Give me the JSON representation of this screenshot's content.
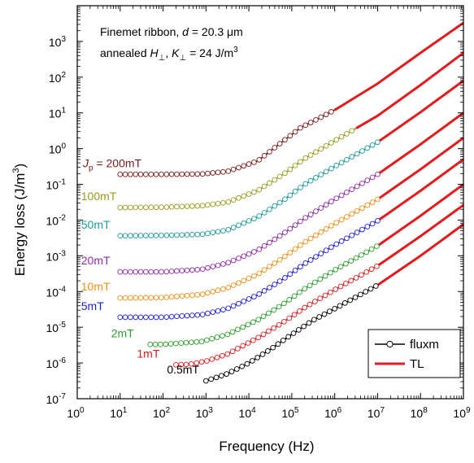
{
  "chart_data": {
    "type": "line",
    "xlabel": "Frequency (Hz)",
    "ylabel_main": "Energy loss (J/m",
    "ylabel_sup": "3",
    "ylabel_close": ")",
    "xscale": "log",
    "yscale": "log",
    "xlim": [
      1,
      1000000000
    ],
    "ylim": [
      1e-07,
      10000
    ],
    "x_tick_exponents": [
      0,
      1,
      2,
      3,
      4,
      5,
      6,
      7,
      8,
      9
    ],
    "y_tick_exponents": [
      -7,
      -6,
      -5,
      -4,
      -3,
      -2,
      -1,
      0,
      1,
      2,
      3
    ],
    "tick_base": "10",
    "annotation": {
      "line1_prefix": "Finemet ribbon, ",
      "line1_var": "d",
      "line1_suffix": " = 20.3 μm",
      "line2_prefix": "annealed ",
      "line2_h": "H",
      "line2_k": "K",
      "line2_sub": "⊥",
      "line2_sep": ", ",
      "line2_suffix": " = 24 J/m",
      "line2_sup": "3"
    },
    "jp_label": {
      "var": "J",
      "sub": "p",
      "suffix": " = 200mT"
    },
    "legend": {
      "position": "bottom-right",
      "items": [
        {
          "label": "fluxm",
          "color": "#000000",
          "marker": "open-circle"
        },
        {
          "label": "TL",
          "color": "#e41a1c",
          "marker": "line"
        }
      ]
    },
    "series": [
      {
        "name": "200mT",
        "color": "#7b1a1a",
        "label_color": "#7b1a1a",
        "meas_x": [
          1,
          6
        ],
        "tl": [
          [
            1,
            -0.72
          ],
          [
            2,
            -0.72
          ],
          [
            2.9,
            -0.71
          ],
          [
            3.5,
            -0.64
          ],
          [
            4.2,
            -0.35
          ],
          [
            4.7,
            0.12
          ],
          [
            5.2,
            0.58
          ],
          [
            6,
            1.08
          ],
          [
            7,
            1.82
          ],
          [
            8,
            2.68
          ],
          [
            9,
            3.52
          ]
        ]
      },
      {
        "name": "100mT",
        "color": "#9b9b1f",
        "label_color": "#9b9b1f",
        "meas_x": [
          1,
          6.5
        ],
        "tl": [
          [
            1,
            -1.65
          ],
          [
            2,
            -1.64
          ],
          [
            2.9,
            -1.6
          ],
          [
            3.5,
            -1.5
          ],
          [
            4.2,
            -1.18
          ],
          [
            4.8,
            -0.72
          ],
          [
            5.3,
            -0.28
          ],
          [
            6,
            0.22
          ],
          [
            7,
            0.92
          ],
          [
            8,
            1.78
          ],
          [
            9,
            2.68
          ]
        ]
      },
      {
        "name": "50mT",
        "color": "#1f9a9a",
        "label_color": "#1f9a9a",
        "meas_x": [
          1,
          7
        ],
        "tl": [
          [
            1,
            -2.44
          ],
          [
            2,
            -2.43
          ],
          [
            2.9,
            -2.4
          ],
          [
            3.5,
            -2.28
          ],
          [
            4.2,
            -1.92
          ],
          [
            4.8,
            -1.45
          ],
          [
            5.3,
            -1.0
          ],
          [
            6,
            -0.5
          ],
          [
            7,
            0.18
          ],
          [
            8,
            1.02
          ],
          [
            9,
            1.9
          ]
        ]
      },
      {
        "name": "20mT",
        "color": "#8e2ca8",
        "label_color": "#8e2ca8",
        "meas_x": [
          1,
          7
        ],
        "tl": [
          [
            1,
            -3.45
          ],
          [
            2,
            -3.45
          ],
          [
            2.9,
            -3.38
          ],
          [
            3.5,
            -3.2
          ],
          [
            4.2,
            -2.85
          ],
          [
            4.8,
            -2.38
          ],
          [
            5.3,
            -1.95
          ],
          [
            6,
            -1.42
          ],
          [
            7,
            -0.72
          ],
          [
            8,
            0.12
          ],
          [
            9,
            1.0
          ]
        ]
      },
      {
        "name": "10mT",
        "color": "#f0901a",
        "label_color": "#f0901a",
        "meas_x": [
          1,
          7
        ],
        "tl": [
          [
            1,
            -4.18
          ],
          [
            2,
            -4.17
          ],
          [
            2.9,
            -4.08
          ],
          [
            3.5,
            -3.9
          ],
          [
            4.2,
            -3.52
          ],
          [
            4.8,
            -3.05
          ],
          [
            5.3,
            -2.62
          ],
          [
            6,
            -2.1
          ],
          [
            7,
            -1.42
          ],
          [
            8,
            -0.58
          ],
          [
            9,
            0.3
          ]
        ]
      },
      {
        "name": "5mT",
        "color": "#1f1fe0",
        "label_color": "#1f1fe0",
        "meas_x": [
          1,
          7
        ],
        "tl": [
          [
            1,
            -4.72
          ],
          [
            2,
            -4.72
          ],
          [
            2.9,
            -4.65
          ],
          [
            3.5,
            -4.48
          ],
          [
            4.2,
            -4.1
          ],
          [
            4.8,
            -3.65
          ],
          [
            5.3,
            -3.22
          ],
          [
            6,
            -2.7
          ],
          [
            7,
            -2.02
          ],
          [
            8,
            -1.18
          ],
          [
            9,
            -0.3
          ]
        ]
      },
      {
        "name": "2mT",
        "color": "#2ca02c",
        "label_color": "#2ca02c",
        "meas_x": [
          1.7,
          7
        ],
        "tl": [
          [
            1.7,
            -5.48
          ],
          [
            2,
            -5.48
          ],
          [
            2.9,
            -5.4
          ],
          [
            3.5,
            -5.2
          ],
          [
            4.2,
            -4.8
          ],
          [
            4.8,
            -4.35
          ],
          [
            5.3,
            -3.92
          ],
          [
            6,
            -3.4
          ],
          [
            7,
            -2.72
          ],
          [
            8,
            -1.88
          ],
          [
            9,
            -1.0
          ]
        ]
      },
      {
        "name": "1mT",
        "color": "#e41a1c",
        "label_color": "#e41a1c",
        "meas_x": [
          2.3,
          7
        ],
        "tl": [
          [
            2.3,
            -6.05
          ],
          [
            2.6,
            -6.04
          ],
          [
            3,
            -5.95
          ],
          [
            3.5,
            -5.75
          ],
          [
            4.2,
            -5.3
          ],
          [
            4.8,
            -4.86
          ],
          [
            5.3,
            -4.45
          ],
          [
            6,
            -3.95
          ],
          [
            7,
            -3.28
          ],
          [
            8,
            -2.45
          ],
          [
            9,
            -1.58
          ]
        ]
      },
      {
        "name": "0.5mT",
        "color": "#000000",
        "label_color": "#000000",
        "meas_x": [
          3,
          7
        ],
        "tl": [
          [
            3,
            -6.5
          ],
          [
            3.5,
            -6.3
          ],
          [
            4,
            -6.0
          ],
          [
            4.5,
            -5.62
          ],
          [
            5,
            -5.2
          ],
          [
            5.5,
            -4.8
          ],
          [
            6,
            -4.48
          ],
          [
            7,
            -3.82
          ],
          [
            8,
            -3.0
          ],
          [
            9,
            -2.12
          ]
        ]
      }
    ]
  }
}
